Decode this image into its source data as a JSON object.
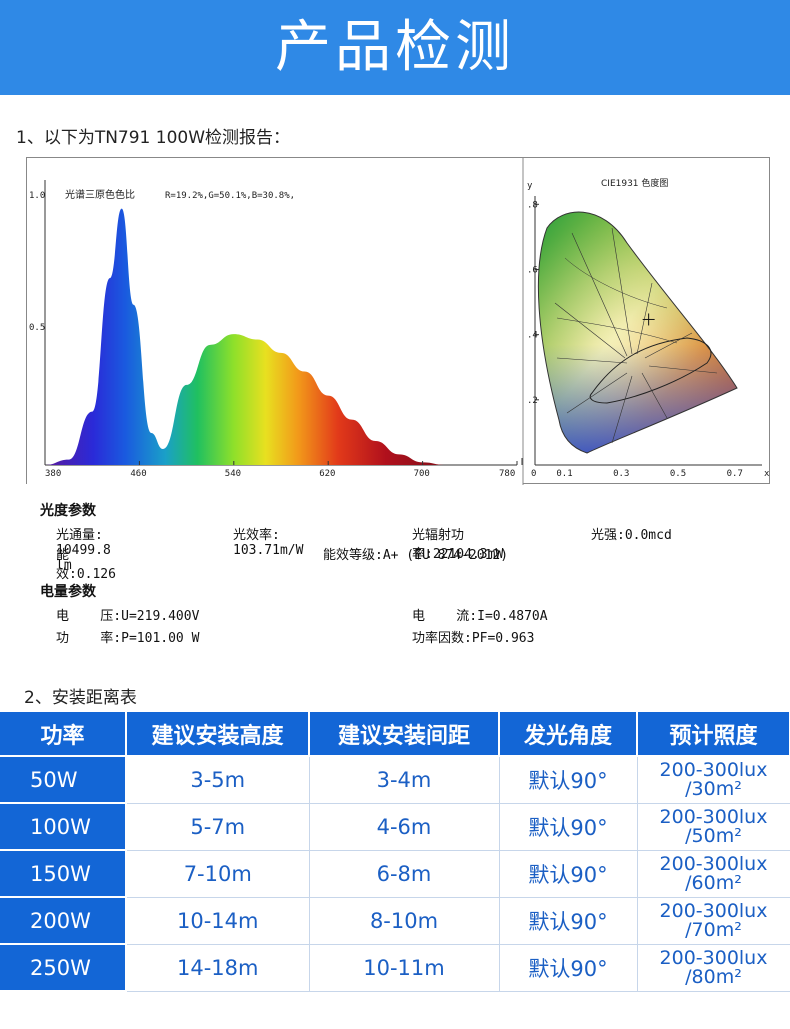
{
  "banner": {
    "title": "产品检测"
  },
  "section1": {
    "title": "1、以下为TN791 100W检测报告："
  },
  "spectrum": {
    "title": "光谱三原色色比",
    "ratio": "R=19.2%,G=50.1%,B=30.8%,",
    "y_ticks": [
      "1.0",
      "0.5"
    ],
    "x_ticks": [
      "380",
      "460",
      "540",
      "620",
      "700",
      "780"
    ]
  },
  "cie": {
    "y_label": "y",
    "title": "CIE1931 色度图",
    "y_ticks": [
      ".8",
      ".6",
      ".4",
      ".2"
    ],
    "x_ticks": [
      "0",
      "0.1",
      "0.3",
      "0.5",
      "0.7",
      "x"
    ]
  },
  "chart_data": [
    {
      "type": "line",
      "title": "光谱三原色色比",
      "subtitle": "R=19.2%,G=50.1%,B=30.8%,",
      "x": [
        380,
        400,
        420,
        435,
        445,
        455,
        470,
        480,
        500,
        520,
        540,
        560,
        580,
        600,
        620,
        640,
        660,
        680,
        700,
        720
      ],
      "y": [
        0.0,
        0.02,
        0.2,
        0.7,
        0.96,
        0.6,
        0.12,
        0.06,
        0.3,
        0.45,
        0.49,
        0.47,
        0.42,
        0.35,
        0.26,
        0.17,
        0.09,
        0.04,
        0.01,
        0.0
      ],
      "xlim": [
        380,
        780
      ],
      "ylim": [
        0,
        1.0
      ],
      "grid": false
    },
    {
      "type": "scatter",
      "title": "CIE1931 色度图",
      "ylabel": "y",
      "xlim": [
        0,
        0.8
      ],
      "ylim": [
        0,
        0.85
      ],
      "points": [
        {
          "x": 0.33,
          "y": 0.33
        }
      ]
    }
  ],
  "photometric": {
    "title": "光度参数",
    "row1": [
      "光通量: 10499.8 lm",
      "光效率: 103.71m/W",
      "光辐射功率:22104.3mW",
      "光强:0.0mcd"
    ],
    "row2": [
      "能效:0.126",
      "能效等级:A+ (EU 874-2012)"
    ]
  },
  "electrical": {
    "title": "电量参数",
    "voltage": "电    压:U=219.400V",
    "current": "电    流:I=0.4870A",
    "power": "功    率:P=101.00 W",
    "pf": "功率因数:PF=0.963"
  },
  "section2": {
    "title": "2、安装距离表"
  },
  "table": {
    "headers": [
      "功率",
      "建议安装高度",
      "建议安装间距",
      "发光角度",
      "预计照度"
    ],
    "rows": [
      {
        "power": "50W",
        "height": "3-5m",
        "spacing": "3-4m",
        "angle": "默认90°",
        "lux": "200-300lux",
        "area": "/30m²"
      },
      {
        "power": "100W",
        "height": "5-7m",
        "spacing": "4-6m",
        "angle": "默认90°",
        "lux": "200-300lux",
        "area": "/50m²"
      },
      {
        "power": "150W",
        "height": "7-10m",
        "spacing": "6-8m",
        "angle": "默认90°",
        "lux": "200-300lux",
        "area": "/60m²"
      },
      {
        "power": "200W",
        "height": "10-14m",
        "spacing": "8-10m",
        "angle": "默认90°",
        "lux": "200-300lux",
        "area": "/70m²"
      },
      {
        "power": "250W",
        "height": "14-18m",
        "spacing": "10-11m",
        "angle": "默认90°",
        "lux": "200-300lux",
        "area": "/80m²"
      }
    ]
  }
}
